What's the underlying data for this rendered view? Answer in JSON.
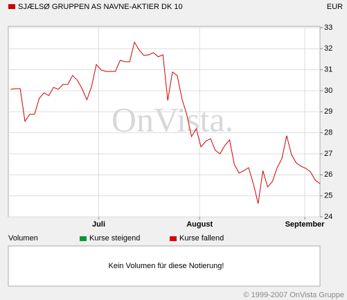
{
  "chart_data": {
    "type": "line",
    "currency": "EUR",
    "watermark": "OnVista.",
    "series": [
      {
        "name": "SJÆLSØ GRUPPEN AS NAVNE-AKTIER DK 10",
        "color": "#cc0000",
        "values": [
          30.07,
          30.1,
          30.1,
          28.55,
          28.88,
          28.88,
          29.64,
          29.9,
          29.77,
          30.16,
          30.07,
          30.3,
          30.3,
          30.73,
          30.5,
          30.1,
          29.57,
          30.2,
          31.25,
          30.99,
          30.92,
          30.92,
          30.92,
          31.45,
          31.38,
          31.38,
          32.31,
          31.94,
          31.68,
          31.71,
          31.81,
          31.62,
          31.71,
          29.54,
          30.89,
          30.73,
          29.6,
          28.88,
          27.82,
          28.19,
          27.33,
          27.6,
          27.72,
          27.16,
          27.0,
          27.4,
          27.66,
          26.5,
          26.08,
          26.2,
          26.34,
          25.58,
          24.63,
          26.2,
          25.42,
          25.68,
          26.34,
          26.77,
          27.86,
          26.97,
          26.57,
          26.41,
          26.31,
          26.14,
          25.75,
          25.58
        ]
      }
    ],
    "xlim": [
      -0.5,
      65
    ],
    "xticks": [
      {
        "value": 18.5,
        "label": "Juli"
      },
      {
        "value": 39.7,
        "label": "August"
      },
      {
        "value": 61.8,
        "label": "September"
      }
    ],
    "ylim": [
      24,
      33
    ],
    "yticks": [
      24,
      25,
      26,
      27,
      28,
      29,
      30,
      31,
      32,
      33
    ],
    "grid": true,
    "volume": {
      "label": "Volumen",
      "legend": [
        {
          "name": "Kurse steigend",
          "color": "#009933"
        },
        {
          "name": "Kurse fallend",
          "color": "#dd0000"
        }
      ],
      "message": "Kein Volumen für diese Notierung!"
    },
    "copyright": "© 1999-2007 OnVista Gruppe"
  }
}
